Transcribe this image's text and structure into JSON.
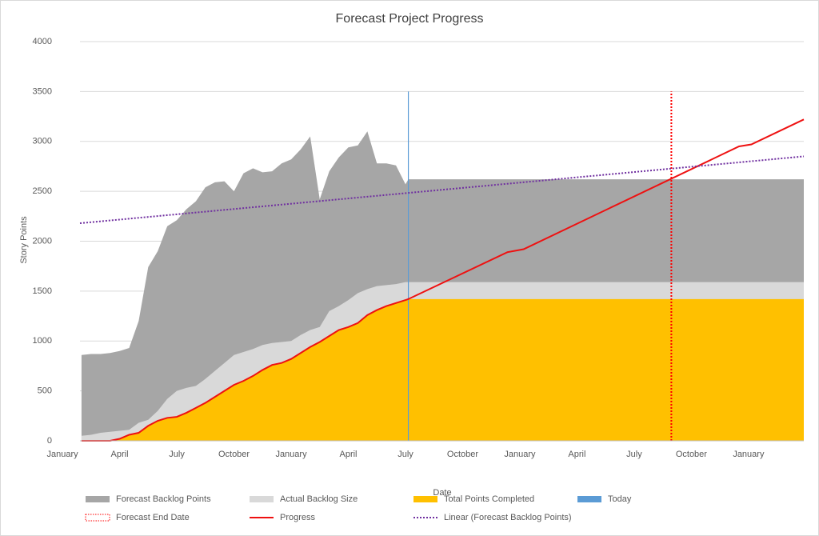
{
  "chart_data": {
    "type": "combo",
    "title": "Forecast Project Progress",
    "x_label": "Date",
    "y_label": "Story Points",
    "xlim": [
      0.92,
      38.9
    ],
    "ylim": [
      0,
      4000
    ],
    "yticks": [
      0,
      500,
      1000,
      1500,
      2000,
      2500,
      3000,
      3500,
      4000
    ],
    "xticks": [
      {
        "value": 0,
        "label": "January"
      },
      {
        "value": 3,
        "label": "April"
      },
      {
        "value": 6,
        "label": "July"
      },
      {
        "value": 9,
        "label": "October"
      },
      {
        "value": 12,
        "label": "January"
      },
      {
        "value": 15,
        "label": "April"
      },
      {
        "value": 18,
        "label": "July"
      },
      {
        "value": 21,
        "label": "October"
      },
      {
        "value": 24,
        "label": "January"
      },
      {
        "value": 27,
        "label": "April"
      },
      {
        "value": 30,
        "label": "July"
      },
      {
        "value": 33,
        "label": "October"
      },
      {
        "value": 36,
        "label": "January"
      }
    ],
    "grid": true,
    "series": [
      {
        "name": "Forecast Backlog Points",
        "type": "area",
        "color": "#a6a6a6",
        "x": [
          1.0,
          1.5,
          2.0,
          2.5,
          3.0,
          3.5,
          4.0,
          4.5,
          5.0,
          5.5,
          6.0,
          6.5,
          7.0,
          7.5,
          8.0,
          8.5,
          9.0,
          9.5,
          10.0,
          10.5,
          11.0,
          11.5,
          12.0,
          12.5,
          13.0,
          13.5,
          14.0,
          14.5,
          15.0,
          15.5,
          16.0,
          16.5,
          17.0,
          17.5,
          18.0,
          18.15,
          38.9
        ],
        "values": [
          860,
          870,
          870,
          880,
          900,
          930,
          1200,
          1740,
          1900,
          2150,
          2210,
          2320,
          2400,
          2540,
          2590,
          2600,
          2500,
          2680,
          2730,
          2690,
          2700,
          2780,
          2820,
          2920,
          3050,
          2420,
          2700,
          2840,
          2940,
          2960,
          3100,
          2780,
          2780,
          2760,
          2570,
          2620,
          2620
        ]
      },
      {
        "name": "Actual Backlog Size",
        "type": "area",
        "color": "#d9d9d9",
        "x": [
          1.0,
          1.5,
          2.0,
          2.5,
          3.0,
          3.5,
          4.0,
          4.5,
          5.0,
          5.5,
          6.0,
          6.5,
          7.0,
          7.5,
          8.0,
          8.5,
          9.0,
          9.5,
          10.0,
          10.5,
          11.0,
          11.5,
          12.0,
          12.5,
          13.0,
          13.5,
          14.0,
          14.5,
          15.0,
          15.5,
          16.0,
          16.5,
          17.0,
          17.5,
          18.0,
          18.15,
          38.9
        ],
        "values": [
          50,
          60,
          80,
          90,
          100,
          110,
          180,
          210,
          300,
          420,
          500,
          530,
          550,
          620,
          700,
          780,
          860,
          890,
          920,
          960,
          980,
          990,
          1000,
          1060,
          1110,
          1140,
          1300,
          1350,
          1410,
          1480,
          1520,
          1550,
          1560,
          1570,
          1590,
          1590,
          1590
        ]
      },
      {
        "name": "Total Points Completed",
        "type": "area",
        "color": "#ffc000",
        "x": [
          1.0,
          1.5,
          2.0,
          2.5,
          3.0,
          3.5,
          4.0,
          4.5,
          5.0,
          5.5,
          6.0,
          6.5,
          7.0,
          7.5,
          8.0,
          8.5,
          9.0,
          9.5,
          10.0,
          10.5,
          11.0,
          11.5,
          12.0,
          12.5,
          13.0,
          13.5,
          14.0,
          14.5,
          15.0,
          15.5,
          16.0,
          16.5,
          17.0,
          17.5,
          18.0,
          18.15,
          38.9
        ],
        "values": [
          0,
          0,
          0,
          0,
          20,
          60,
          80,
          150,
          200,
          230,
          240,
          280,
          330,
          380,
          440,
          500,
          560,
          600,
          650,
          710,
          760,
          780,
          820,
          880,
          940,
          990,
          1050,
          1110,
          1140,
          1180,
          1260,
          1310,
          1350,
          1380,
          1410,
          1420,
          1420
        ]
      },
      {
        "name": "Today",
        "type": "vline",
        "color": "#5b9bd5",
        "x": [
          18.15,
          18.15
        ],
        "values": [
          0,
          3500
        ]
      },
      {
        "name": "Forecast End Date",
        "type": "vline",
        "color": "#ff0000",
        "dash": "dotted",
        "x": [
          31.95,
          31.95
        ],
        "values": [
          0,
          3500
        ]
      },
      {
        "name": "Progress",
        "type": "line",
        "color": "#ee1111",
        "x": [
          1.0,
          1.5,
          2.0,
          2.5,
          3.0,
          3.5,
          4.0,
          4.5,
          5.0,
          5.5,
          6.0,
          6.5,
          7.0,
          7.5,
          8.0,
          8.5,
          9.0,
          9.5,
          10.0,
          10.5,
          11.0,
          11.5,
          12.0,
          12.5,
          13.0,
          13.5,
          14.0,
          14.5,
          15.0,
          15.5,
          16.0,
          16.5,
          17.0,
          17.5,
          18.0,
          18.15,
          23.35,
          24.2,
          35.5,
          36.15,
          38.9
        ],
        "values": [
          0,
          0,
          0,
          0,
          20,
          60,
          80,
          150,
          200,
          230,
          240,
          280,
          330,
          380,
          440,
          500,
          560,
          600,
          650,
          710,
          760,
          780,
          820,
          880,
          940,
          990,
          1050,
          1110,
          1140,
          1180,
          1260,
          1310,
          1350,
          1380,
          1410,
          1420,
          1890,
          1920,
          2950,
          2970,
          3220
        ]
      },
      {
        "name": "Linear (Forecast Backlog Points)",
        "type": "line",
        "color": "#7030a0",
        "dash": "dotted",
        "x": [
          0.92,
          38.9
        ],
        "values": [
          2180,
          2850
        ]
      }
    ]
  }
}
